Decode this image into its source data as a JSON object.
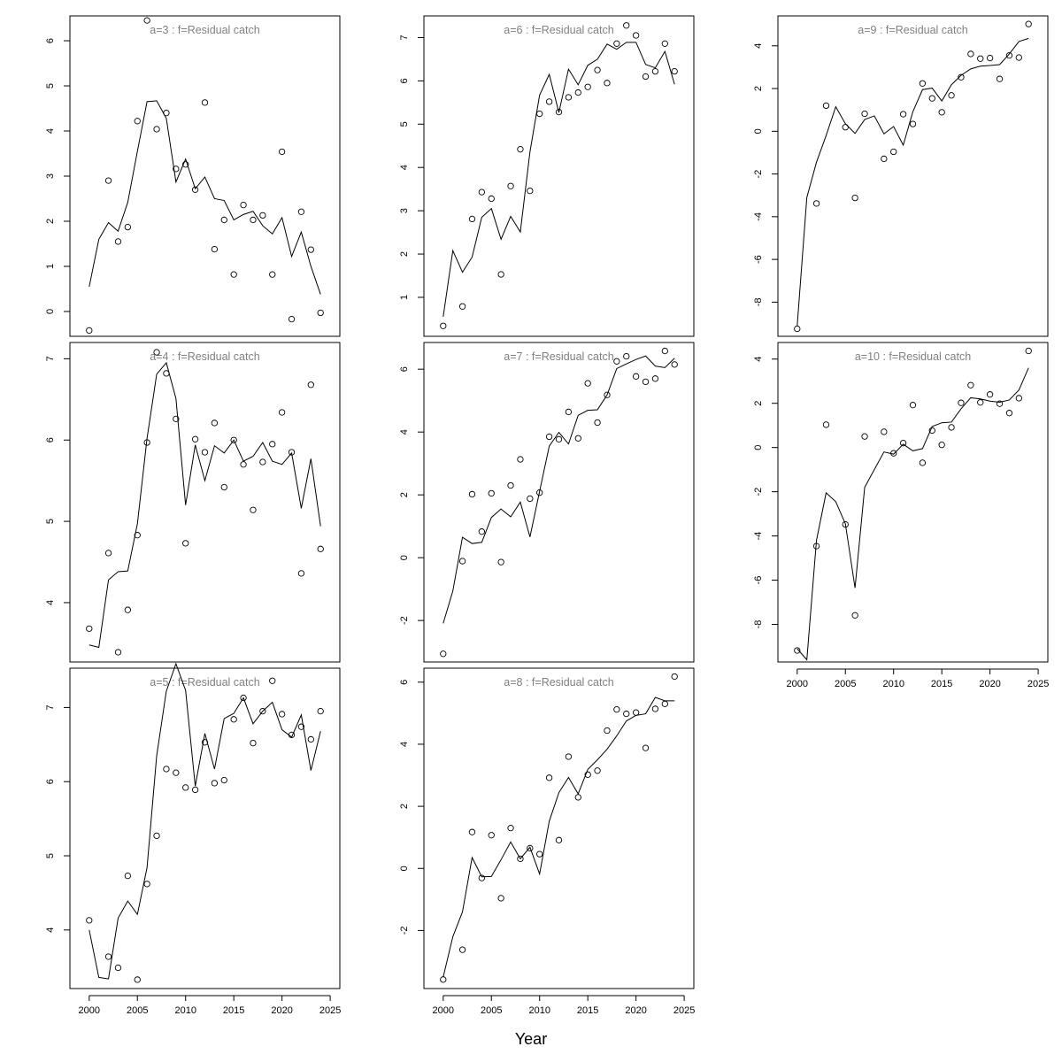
{
  "figure": {
    "xlabel": "Year"
  },
  "chart_data": [
    {
      "type": "scatter",
      "title": "a=3  :  f=Residual catch",
      "x": [
        2000,
        2001,
        2002,
        2003,
        2004,
        2005,
        2006,
        2007,
        2008,
        2009,
        2010,
        2011,
        2012,
        2013,
        2014,
        2015,
        2016,
        2017,
        2018,
        2019,
        2020,
        2021,
        2022,
        2023,
        2024
      ],
      "observed": [
        -0.42,
        null,
        2.9,
        1.55,
        1.87,
        4.22,
        6.45,
        4.04,
        4.4,
        3.16,
        3.26,
        2.7,
        4.63,
        1.38,
        2.03,
        0.82,
        2.36,
        2.03,
        2.13,
        0.82,
        3.54,
        -0.17,
        2.21,
        1.37,
        -0.03
      ],
      "fitted": [
        0.55,
        1.6,
        1.97,
        1.78,
        2.42,
        3.55,
        4.65,
        4.67,
        4.28,
        2.87,
        3.38,
        2.72,
        2.98,
        2.5,
        2.46,
        2.03,
        2.15,
        2.22,
        1.9,
        1.72,
        2.08,
        1.22,
        1.76,
        1.0,
        0.38
      ],
      "ylim": [
        -0.55,
        6.55
      ],
      "yticks": [
        0,
        1,
        2,
        3,
        4,
        5,
        6
      ],
      "show_xaxis": false
    },
    {
      "type": "scatter",
      "title": "a=4  :  f=Residual catch",
      "x": [
        2000,
        2001,
        2002,
        2003,
        2004,
        2005,
        2006,
        2007,
        2008,
        2009,
        2010,
        2011,
        2012,
        2013,
        2014,
        2015,
        2016,
        2017,
        2018,
        2019,
        2020,
        2021,
        2022,
        2023,
        2024
      ],
      "observed": [
        3.68,
        null,
        4.61,
        3.39,
        3.91,
        4.83,
        5.97,
        7.08,
        6.82,
        6.26,
        4.73,
        6.01,
        5.85,
        6.21,
        5.42,
        6.0,
        5.7,
        5.14,
        5.73,
        5.95,
        6.34,
        5.85,
        4.36,
        6.68,
        4.66
      ],
      "fitted": [
        3.48,
        3.45,
        4.28,
        4.38,
        4.39,
        4.97,
        6.02,
        6.81,
        6.95,
        6.51,
        5.2,
        5.94,
        5.5,
        5.93,
        5.84,
        6.0,
        5.74,
        5.8,
        5.97,
        5.74,
        5.7,
        5.84,
        5.16,
        5.77,
        4.94
      ],
      "ylim": [
        3.27,
        7.2
      ],
      "yticks": [
        4,
        5,
        6,
        7
      ],
      "show_xaxis": false
    },
    {
      "type": "scatter",
      "title": "a=5  :  f=Residual catch",
      "x": [
        2000,
        2001,
        2002,
        2003,
        2004,
        2005,
        2006,
        2007,
        2008,
        2009,
        2010,
        2011,
        2012,
        2013,
        2014,
        2015,
        2016,
        2017,
        2018,
        2019,
        2020,
        2021,
        2022,
        2023,
        2024
      ],
      "observed": [
        4.13,
        null,
        3.64,
        3.49,
        4.73,
        3.33,
        4.62,
        5.27,
        6.17,
        6.12,
        5.92,
        5.89,
        6.53,
        5.98,
        6.02,
        6.84,
        7.13,
        6.52,
        6.95,
        7.36,
        6.91,
        6.63,
        6.74,
        6.57,
        6.95
      ],
      "fitted": [
        4.0,
        3.36,
        3.34,
        4.16,
        4.39,
        4.21,
        4.84,
        6.35,
        7.22,
        7.59,
        7.23,
        5.94,
        6.65,
        6.17,
        6.85,
        6.92,
        7.13,
        6.78,
        6.95,
        7.07,
        6.7,
        6.6,
        6.9,
        6.15,
        6.68
      ],
      "ylim": [
        3.21,
        7.53
      ],
      "yticks": [
        4,
        5,
        6,
        7
      ],
      "show_xaxis": true
    },
    {
      "type": "scatter",
      "title": "a=6  :  f=Residual catch",
      "x": [
        2000,
        2001,
        2002,
        2003,
        2004,
        2005,
        2006,
        2007,
        2008,
        2009,
        2010,
        2011,
        2012,
        2013,
        2014,
        2015,
        2016,
        2017,
        2018,
        2019,
        2020,
        2021,
        2022,
        2023,
        2024
      ],
      "observed": [
        0.34,
        null,
        0.79,
        2.81,
        3.43,
        3.28,
        1.53,
        3.57,
        4.42,
        3.46,
        5.24,
        5.52,
        5.28,
        5.62,
        5.73,
        5.86,
        6.25,
        5.95,
        6.86,
        7.28,
        7.05,
        6.1,
        6.22,
        6.86,
        6.22
      ],
      "fitted": [
        0.55,
        2.08,
        1.58,
        1.93,
        2.85,
        3.05,
        2.34,
        2.87,
        2.51,
        4.36,
        5.67,
        6.15,
        5.27,
        6.27,
        5.91,
        6.36,
        6.5,
        6.85,
        6.73,
        6.89,
        6.89,
        6.38,
        6.3,
        6.68,
        5.92
      ],
      "ylim": [
        0.1,
        7.5
      ],
      "yticks": [
        1,
        2,
        3,
        4,
        5,
        6,
        7
      ],
      "show_xaxis": false
    },
    {
      "type": "scatter",
      "title": "a=7  :  f=Residual catch",
      "x": [
        2000,
        2001,
        2002,
        2003,
        2004,
        2005,
        2006,
        2007,
        2008,
        2009,
        2010,
        2011,
        2012,
        2013,
        2014,
        2015,
        2016,
        2017,
        2018,
        2019,
        2020,
        2021,
        2022,
        2023,
        2024
      ],
      "observed": [
        -3.06,
        null,
        -0.11,
        2.02,
        0.83,
        2.05,
        -0.14,
        2.3,
        3.13,
        1.88,
        2.07,
        3.85,
        3.77,
        4.64,
        3.8,
        5.55,
        4.3,
        5.18,
        6.25,
        6.41,
        5.77,
        5.6,
        5.7,
        6.58,
        6.15
      ],
      "fitted": [
        -2.09,
        -1.06,
        0.65,
        0.45,
        0.49,
        1.28,
        1.55,
        1.3,
        1.77,
        0.66,
        2.11,
        3.55,
        3.99,
        3.62,
        4.53,
        4.69,
        4.71,
        5.18,
        6.02,
        6.17,
        6.31,
        6.42,
        6.1,
        6.05,
        6.35
      ],
      "ylim": [
        -3.32,
        6.85
      ],
      "yticks": [
        -2,
        0,
        2,
        4,
        6
      ],
      "show_xaxis": false
    },
    {
      "type": "scatter",
      "title": "a=8  :  f=Residual catch",
      "x": [
        2000,
        2001,
        2002,
        2003,
        2004,
        2005,
        2006,
        2007,
        2008,
        2009,
        2010,
        2011,
        2012,
        2013,
        2014,
        2015,
        2016,
        2017,
        2018,
        2019,
        2020,
        2021,
        2022,
        2023,
        2024
      ],
      "observed": [
        -3.58,
        null,
        -2.62,
        1.17,
        -0.31,
        1.07,
        -0.96,
        1.3,
        0.31,
        0.65,
        0.46,
        2.92,
        0.91,
        3.6,
        2.29,
        3.02,
        3.15,
        4.44,
        5.12,
        4.98,
        5.02,
        3.88,
        5.14,
        5.3,
        6.18
      ],
      "fitted": [
        -3.5,
        -2.2,
        -1.4,
        0.35,
        -0.27,
        -0.26,
        0.28,
        0.85,
        0.31,
        0.68,
        -0.18,
        1.52,
        2.44,
        2.93,
        2.4,
        3.19,
        3.5,
        3.84,
        4.27,
        4.75,
        4.93,
        4.98,
        5.51,
        5.4,
        5.4
      ],
      "ylim": [
        -3.87,
        6.45
      ],
      "yticks": [
        -2,
        0,
        2,
        4,
        6
      ],
      "show_xaxis": true
    },
    {
      "type": "scatter",
      "title": "a=9  :  f=Residual catch",
      "x": [
        2000,
        2001,
        2002,
        2003,
        2004,
        2005,
        2006,
        2007,
        2008,
        2009,
        2010,
        2011,
        2012,
        2013,
        2014,
        2015,
        2016,
        2017,
        2018,
        2019,
        2020,
        2021,
        2022,
        2023,
        2024
      ],
      "observed": [
        -9.25,
        null,
        -3.38,
        1.2,
        null,
        0.19,
        -3.12,
        0.82,
        null,
        -1.29,
        -0.96,
        0.8,
        0.34,
        2.24,
        1.54,
        0.89,
        1.68,
        2.53,
        3.62,
        3.4,
        3.43,
        2.45,
        3.55,
        3.45,
        5.02
      ],
      "fitted": [
        -9.1,
        -3.1,
        -1.45,
        -0.2,
        1.15,
        0.35,
        -0.1,
        0.55,
        0.72,
        -0.12,
        0.22,
        -0.65,
        0.92,
        1.95,
        2.02,
        1.42,
        2.18,
        2.62,
        2.92,
        3.05,
        3.08,
        3.12,
        3.62,
        4.2,
        4.35
      ],
      "ylim": [
        -9.6,
        5.4
      ],
      "yticks": [
        -8,
        -6,
        -4,
        -2,
        0,
        2,
        4
      ],
      "show_xaxis": false
    },
    {
      "type": "scatter",
      "title": "a=10  :  f=Residual catch",
      "x": [
        2000,
        2001,
        2002,
        2003,
        2004,
        2005,
        2006,
        2007,
        2008,
        2009,
        2010,
        2011,
        2012,
        2013,
        2014,
        2015,
        2016,
        2017,
        2018,
        2019,
        2020,
        2021,
        2022,
        2023,
        2024
      ],
      "observed": [
        -9.18,
        null,
        -4.46,
        1.03,
        null,
        -3.48,
        -7.59,
        0.5,
        null,
        0.71,
        -0.26,
        0.2,
        1.92,
        -0.69,
        0.77,
        0.12,
        0.91,
        2.02,
        2.82,
        2.04,
        2.4,
        1.98,
        1.56,
        2.23,
        4.37
      ],
      "fitted": [
        -9.1,
        -9.6,
        -4.2,
        -2.05,
        -2.45,
        -3.45,
        -6.35,
        -1.8,
        -1.0,
        -0.2,
        -0.3,
        0.15,
        -0.15,
        -0.05,
        0.95,
        1.12,
        1.15,
        1.75,
        2.25,
        2.2,
        2.1,
        2.05,
        2.15,
        2.6,
        3.6
      ],
      "ylim": [
        -9.7,
        4.75
      ],
      "yticks": [
        -8,
        -6,
        -4,
        -2,
        0,
        2,
        4
      ],
      "show_xaxis": true
    }
  ],
  "x_axis": {
    "xlim": [
      1998,
      2026
    ],
    "xticks": [
      2000,
      2005,
      2010,
      2015,
      2020,
      2025
    ]
  }
}
